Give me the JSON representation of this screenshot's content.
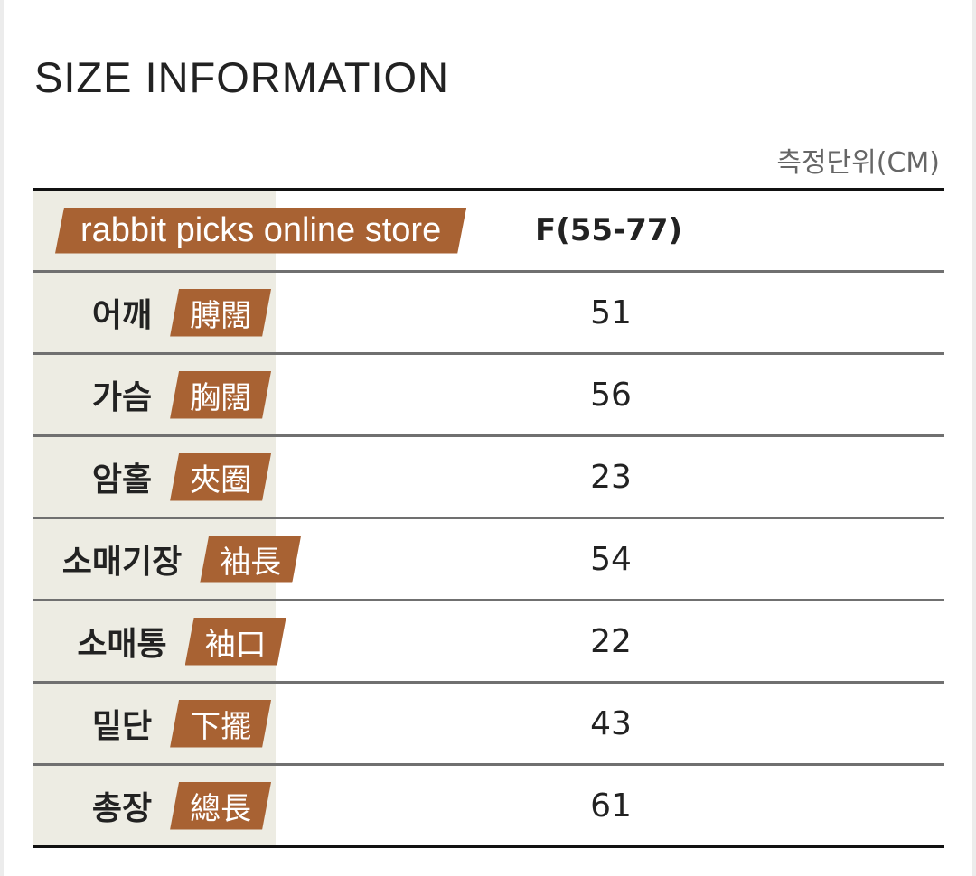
{
  "title": "SIZE INFORMATION",
  "unit": "측정단위(CM)",
  "header": {
    "store": "rabbit picks online store",
    "size": "F(55-77)"
  },
  "rows": [
    {
      "kr": "어깨",
      "hanja": "膊闊",
      "value": "51"
    },
    {
      "kr": "가슴",
      "hanja": "胸闊",
      "value": "56"
    },
    {
      "kr": "암홀",
      "hanja": "夾圈",
      "value": "23"
    },
    {
      "kr": "소매기장",
      "hanja": "袖長",
      "value": "54"
    },
    {
      "kr": "소매통",
      "hanja": "袖口",
      "value": "22"
    },
    {
      "kr": "밑단",
      "hanja": "下擺",
      "value": "43"
    },
    {
      "kr": "총장",
      "hanja": "總長",
      "value": "61"
    }
  ],
  "colors": {
    "badge": "#a86233",
    "label_column": "#edece3"
  }
}
